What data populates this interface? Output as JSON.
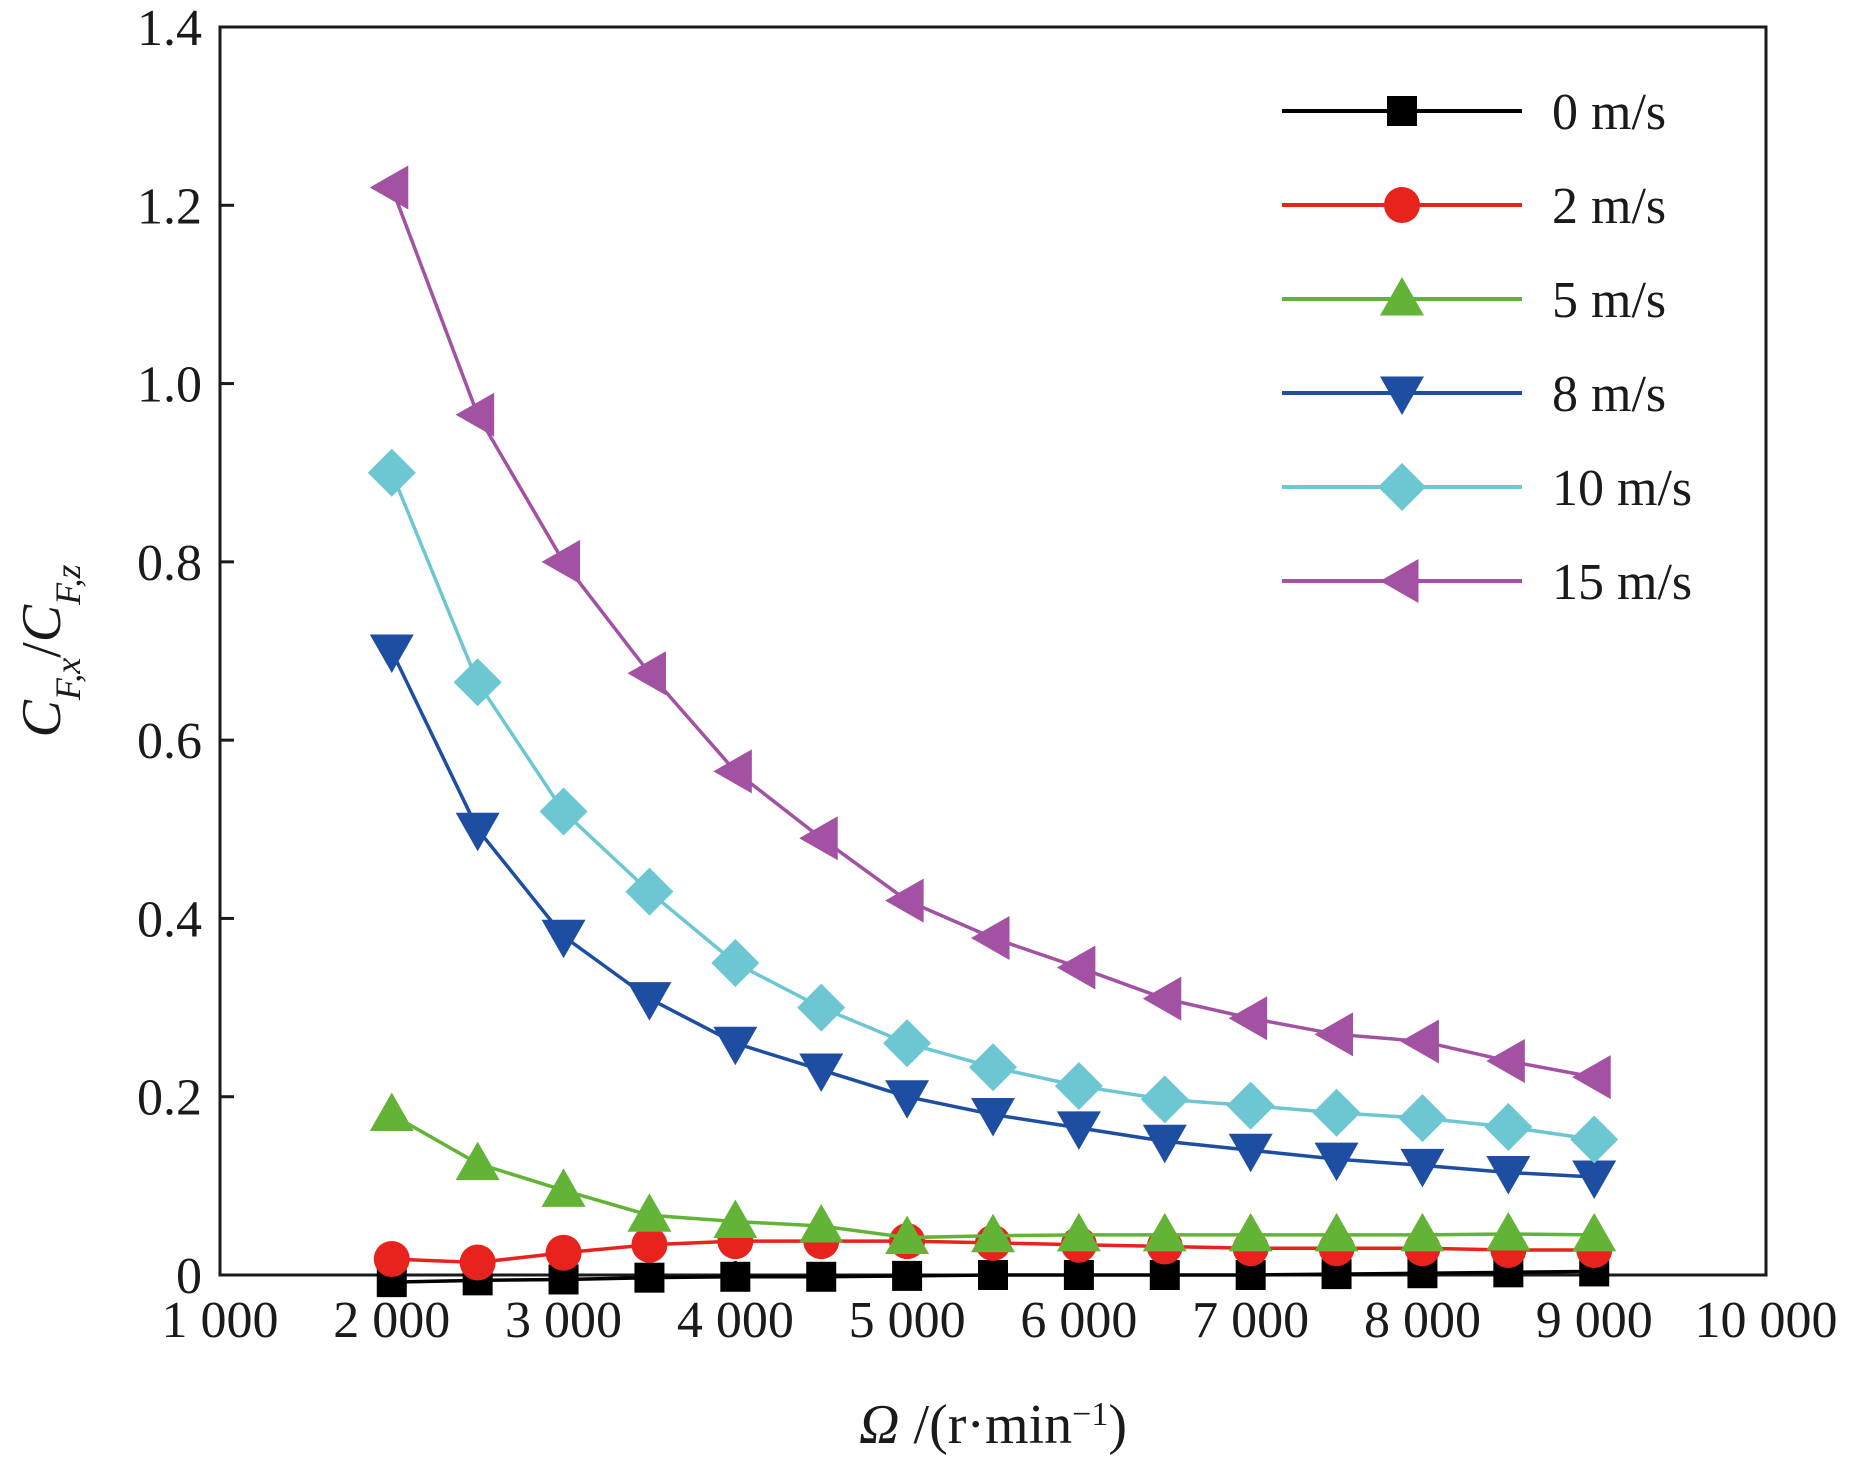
{
  "chart_data": {
    "type": "line",
    "xlabel": {
      "symbol": "Ω",
      "unit": " /(r·min",
      "unit_sup": "−1",
      "unit_close": ")"
    },
    "ylabel": {
      "num": "C",
      "num_sub": "F,x",
      "sep": "/",
      "den": "C",
      "den_sub": "F,z"
    },
    "xlim": [
      1000,
      10000
    ],
    "ylim": [
      0,
      1.4
    ],
    "x_ticks": [
      1000,
      2000,
      3000,
      4000,
      5000,
      6000,
      7000,
      8000,
      9000,
      10000
    ],
    "x_tick_labels": [
      "1 000",
      "2 000",
      "3 000",
      "4 000",
      "5 000",
      "6 000",
      "7 000",
      "8 000",
      "9 000",
      "10 000"
    ],
    "y_ticks": [
      0,
      0.2,
      0.4,
      0.6,
      0.8,
      1.0,
      1.2,
      1.4
    ],
    "y_tick_labels": [
      "0",
      "0.2",
      "0.4",
      "0.6",
      "0.8",
      "1.0",
      "1.2",
      "1.4"
    ],
    "grid": false,
    "legend_position": "top-right",
    "x": [
      2000,
      2500,
      3000,
      3500,
      4000,
      4500,
      5000,
      5500,
      6000,
      6500,
      7000,
      7500,
      8000,
      8500,
      9000
    ],
    "series": [
      {
        "name": "0 m/s",
        "marker": "square",
        "color": "#000000",
        "values": [
          -0.008,
          -0.006,
          -0.005,
          -0.003,
          -0.002,
          -0.002,
          -0.001,
          0.0,
          0.0,
          0.0,
          0.0,
          0.001,
          0.002,
          0.003,
          0.004
        ]
      },
      {
        "name": "2 m/s",
        "marker": "circle",
        "color": "#e8221c",
        "values": [
          0.018,
          0.014,
          0.025,
          0.034,
          0.038,
          0.038,
          0.038,
          0.036,
          0.034,
          0.032,
          0.03,
          0.03,
          0.03,
          0.028,
          0.028
        ]
      },
      {
        "name": "5 m/s",
        "marker": "triangle-up",
        "color": "#62b336",
        "values": [
          0.18,
          0.125,
          0.095,
          0.067,
          0.06,
          0.055,
          0.042,
          0.044,
          0.045,
          0.045,
          0.045,
          0.045,
          0.045,
          0.046,
          0.045
        ]
      },
      {
        "name": "8 m/s",
        "marker": "triangle-down",
        "color": "#1e4ea1",
        "values": [
          0.7,
          0.5,
          0.38,
          0.31,
          0.26,
          0.23,
          0.2,
          0.18,
          0.165,
          0.15,
          0.14,
          0.13,
          0.123,
          0.115,
          0.11
        ]
      },
      {
        "name": "10 m/s",
        "marker": "diamond",
        "color": "#6cc7d3",
        "values": [
          0.9,
          0.665,
          0.52,
          0.43,
          0.35,
          0.3,
          0.26,
          0.233,
          0.212,
          0.197,
          0.19,
          0.182,
          0.176,
          0.166,
          0.152
        ]
      },
      {
        "name": "15 m/s",
        "marker": "triangle-left",
        "color": "#a251a3",
        "values": [
          1.22,
          0.965,
          0.8,
          0.675,
          0.565,
          0.49,
          0.42,
          0.378,
          0.345,
          0.31,
          0.288,
          0.27,
          0.262,
          0.24,
          0.222
        ]
      }
    ]
  }
}
